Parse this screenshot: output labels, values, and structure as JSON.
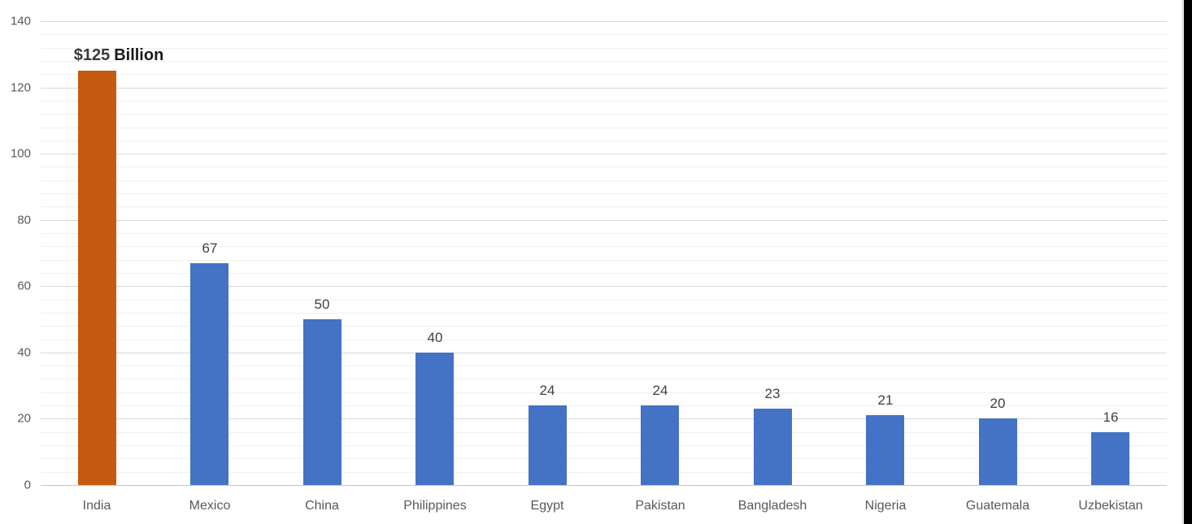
{
  "chart_data": {
    "type": "bar",
    "title": "",
    "categories": [
      "India",
      "Mexico",
      "China",
      "Philippines",
      "Egypt",
      "Pakistan",
      "Bangladesh",
      "Nigeria",
      "Guatemala",
      "Uzbekistan"
    ],
    "values": [
      125,
      67,
      50,
      40,
      24,
      24,
      23,
      21,
      20,
      16
    ],
    "data_labels": [
      "$125 Billion",
      "67",
      "50",
      "40",
      "24",
      "24",
      "23",
      "21",
      "20",
      "16"
    ],
    "highlight": {
      "index": 0,
      "label_value": "$125",
      "label_unit": "Billion"
    },
    "ylim": [
      0,
      140
    ],
    "y_major_ticks": [
      "0",
      "20",
      "40",
      "60",
      "80",
      "100",
      "120",
      "140"
    ],
    "y_major_unit": 20,
    "y_minor_unit": 4,
    "grid": "major+minor horizontal",
    "legend": "none",
    "xlabel": "",
    "ylabel": "",
    "colors": {
      "bar_default": "#4472C4",
      "bar_highlight": "#C55A11",
      "gridline_major": "#D9D9D9",
      "gridline_minor": "#F1F1F1",
      "axis_line": "#C6C6C6",
      "tick_label": "#595959",
      "data_label": "#404040",
      "highlight_label_value": "#3A3A3A",
      "highlight_label_unit": "#1A1A1A"
    }
  }
}
